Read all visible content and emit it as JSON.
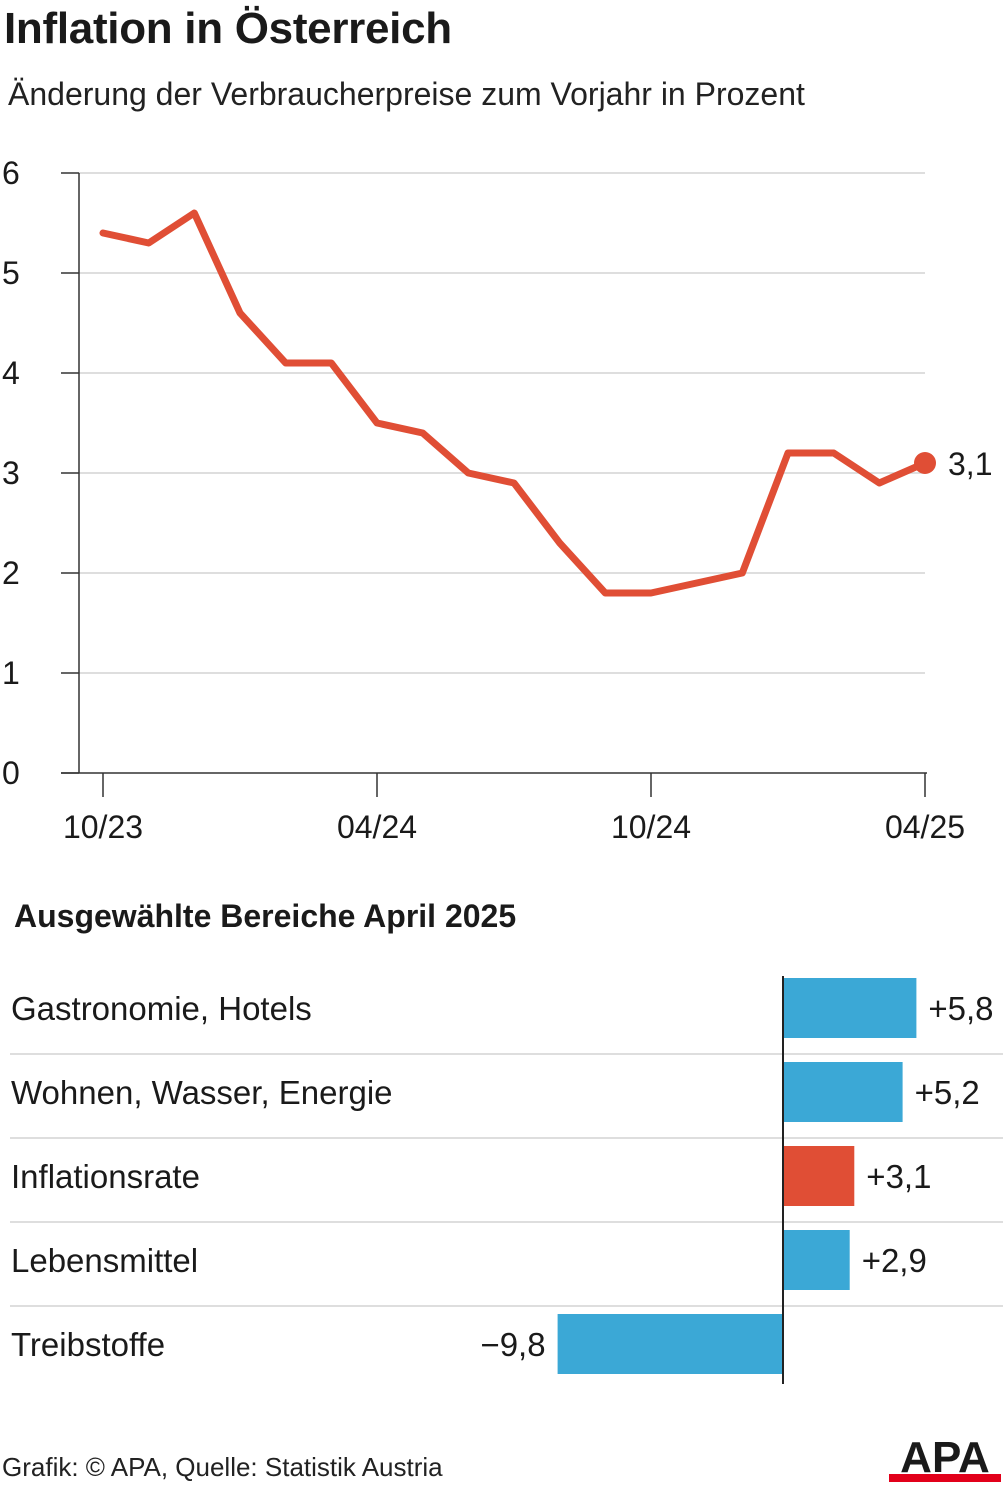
{
  "title": "Inflation in Österreich",
  "subtitle": "Änderung der Verbraucherpreise zum Vorjahr in Prozent",
  "section_title": "Ausgewählte Bereiche April 2025",
  "footer": "Grafik: © APA, Quelle: Statistik Austria",
  "logo_text": "APA",
  "colors": {
    "line": "#e04e35",
    "bar_blue": "#3ba8d6",
    "bar_red": "#e04e35",
    "grid": "#d3d3d3",
    "axis": "#333333",
    "logo_red": "#e2001a"
  },
  "chart_data": [
    {
      "type": "line",
      "title": "Inflation in Österreich",
      "subtitle": "Änderung der Verbraucherpreise zum Vorjahr in Prozent",
      "x": [
        "10/23",
        "11/23",
        "12/23",
        "01/24",
        "02/24",
        "03/24",
        "04/24",
        "05/24",
        "06/24",
        "07/24",
        "08/24",
        "09/24",
        "10/24",
        "11/24",
        "12/24",
        "01/25",
        "02/25",
        "03/25",
        "04/25"
      ],
      "values": [
        5.4,
        5.3,
        5.6,
        4.6,
        4.1,
        4.1,
        3.5,
        3.4,
        3.0,
        2.9,
        2.3,
        1.8,
        1.8,
        1.9,
        2.0,
        3.2,
        3.2,
        2.9,
        3.1
      ],
      "x_tick_labels": [
        "10/23",
        "04/24",
        "10/24",
        "04/25"
      ],
      "y_ticks": [
        "0",
        "1",
        "2",
        "3",
        "4",
        "5",
        "6"
      ],
      "ylim": [
        0,
        6
      ],
      "grid": true,
      "end_label": "3,1"
    },
    {
      "type": "bar",
      "orientation": "horizontal",
      "title": "Ausgewählte Bereiche April 2025",
      "categories": [
        "Gastronomie, Hotels",
        "Wohnen, Wasser, Energie",
        "Inflationsrate",
        "Lebensmittel",
        "Treibstoffe"
      ],
      "values": [
        5.8,
        5.2,
        3.1,
        2.9,
        -9.8
      ],
      "value_labels": [
        "+5,8",
        "+5,2",
        "+3,1",
        "+2,9",
        "−9,8"
      ],
      "highlight": "Inflationsrate"
    }
  ]
}
